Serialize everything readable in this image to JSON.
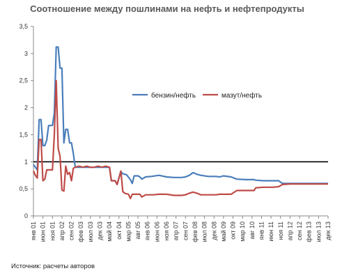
{
  "chart_data": {
    "type": "line",
    "title": "Соотношение между пошлинами на нефть и нефтепродукты",
    "ylim": [
      0,
      3.5
    ],
    "yticks": [
      "0",
      "0,5",
      "1",
      "1,5",
      "2",
      "2,5",
      "3",
      "3,5"
    ],
    "reference_line": 1,
    "x_labels": [
      "янв 01",
      "июн 01",
      "ноя 01",
      "апр 02",
      "сен 02",
      "фев 03",
      "июл 03",
      "дек 03",
      "май 04",
      "окт 04",
      "мар 05",
      "авг 05",
      "янв 06",
      "июн 06",
      "ноя 06",
      "апр 07",
      "сен 07",
      "фев 08",
      "июл 08",
      "дек 08",
      "май 09",
      "окт 09",
      "мар 10",
      "авг 10",
      "янв 11",
      "июн 11",
      "ноя 11",
      "апр 12",
      "сен 12",
      "фев 13",
      "июл 13",
      "дек 13"
    ],
    "legend_position": "center-right",
    "series": [
      {
        "name": "бензин/нефть",
        "color": "#4a7ebb",
        "points": [
          [
            0,
            0.95
          ],
          [
            1,
            0.9
          ],
          [
            2,
            0.85
          ],
          [
            3,
            1.78
          ],
          [
            4,
            1.78
          ],
          [
            5,
            1.3
          ],
          [
            6,
            1.3
          ],
          [
            7,
            1.4
          ],
          [
            8,
            1.67
          ],
          [
            9,
            1.67
          ],
          [
            10,
            1.67
          ],
          [
            11,
            1.9
          ],
          [
            12,
            3.12
          ],
          [
            13,
            3.12
          ],
          [
            14,
            2.73
          ],
          [
            15,
            2.73
          ],
          [
            16,
            1.35
          ],
          [
            17,
            1.6
          ],
          [
            18,
            1.6
          ],
          [
            19,
            1.35
          ],
          [
            20,
            1.35
          ],
          [
            21,
            1.15
          ],
          [
            22,
            0.9
          ],
          [
            24,
            0.9
          ],
          [
            26,
            0.9
          ],
          [
            28,
            0.9
          ],
          [
            30,
            0.9
          ],
          [
            32,
            0.9
          ],
          [
            34,
            0.9
          ],
          [
            36,
            0.9
          ],
          [
            38,
            0.9
          ],
          [
            40,
            0.9
          ],
          [
            41,
            0.65
          ],
          [
            43,
            0.65
          ],
          [
            44,
            0.58
          ],
          [
            46,
            0.82
          ],
          [
            47,
            0.78
          ],
          [
            49,
            0.76
          ],
          [
            51,
            0.67
          ],
          [
            52,
            0.6
          ],
          [
            53,
            0.74
          ],
          [
            55,
            0.74
          ],
          [
            56,
            0.72
          ],
          [
            57,
            0.68
          ],
          [
            59,
            0.72
          ],
          [
            62,
            0.73
          ],
          [
            66,
            0.75
          ],
          [
            70,
            0.72
          ],
          [
            74,
            0.71
          ],
          [
            78,
            0.71
          ],
          [
            80,
            0.72
          ],
          [
            82,
            0.75
          ],
          [
            84,
            0.8
          ],
          [
            86,
            0.77
          ],
          [
            88,
            0.75
          ],
          [
            92,
            0.73
          ],
          [
            96,
            0.73
          ],
          [
            98,
            0.72
          ],
          [
            100,
            0.74
          ],
          [
            104,
            0.72
          ],
          [
            107,
            0.68
          ],
          [
            112,
            0.67
          ],
          [
            116,
            0.67
          ],
          [
            117,
            0.66
          ],
          [
            121,
            0.65
          ],
          [
            126,
            0.65
          ],
          [
            129,
            0.65
          ],
          [
            131,
            0.6
          ],
          [
            135,
            0.6
          ],
          [
            140,
            0.6
          ],
          [
            155,
            0.6
          ]
        ]
      },
      {
        "name": "мазут/нефть",
        "color": "#be4b48",
        "points": [
          [
            0,
            0.83
          ],
          [
            1,
            0.75
          ],
          [
            2,
            0.7
          ],
          [
            3,
            1.41
          ],
          [
            4,
            1.41
          ],
          [
            5,
            0.65
          ],
          [
            6,
            0.68
          ],
          [
            7,
            0.85
          ],
          [
            8,
            0.85
          ],
          [
            10,
            0.85
          ],
          [
            11,
            1.5
          ],
          [
            12,
            2.5
          ],
          [
            13,
            1.25
          ],
          [
            14,
            1.1
          ],
          [
            15,
            0.48
          ],
          [
            16,
            0.46
          ],
          [
            17,
            0.92
          ],
          [
            18,
            0.77
          ],
          [
            19,
            0.8
          ],
          [
            20,
            0.65
          ],
          [
            21,
            0.88
          ],
          [
            22,
            0.9
          ],
          [
            24,
            0.92
          ],
          [
            26,
            0.9
          ],
          [
            28,
            0.92
          ],
          [
            30,
            0.9
          ],
          [
            32,
            0.9
          ],
          [
            34,
            0.92
          ],
          [
            36,
            0.9
          ],
          [
            38,
            0.92
          ],
          [
            40,
            0.9
          ],
          [
            41,
            0.65
          ],
          [
            43,
            0.65
          ],
          [
            44,
            0.58
          ],
          [
            46,
            0.83
          ],
          [
            47,
            0.45
          ],
          [
            48,
            0.42
          ],
          [
            50,
            0.4
          ],
          [
            51,
            0.32
          ],
          [
            52,
            0.4
          ],
          [
            56,
            0.4
          ],
          [
            57,
            0.35
          ],
          [
            59,
            0.39
          ],
          [
            63,
            0.39
          ],
          [
            66,
            0.4
          ],
          [
            70,
            0.4
          ],
          [
            74,
            0.38
          ],
          [
            78,
            0.38
          ],
          [
            80,
            0.39
          ],
          [
            82,
            0.42
          ],
          [
            84,
            0.44
          ],
          [
            86,
            0.42
          ],
          [
            88,
            0.39
          ],
          [
            92,
            0.39
          ],
          [
            96,
            0.39
          ],
          [
            98,
            0.4
          ],
          [
            104,
            0.4
          ],
          [
            107,
            0.47
          ],
          [
            112,
            0.47
          ],
          [
            116,
            0.47
          ],
          [
            117,
            0.52
          ],
          [
            121,
            0.53
          ],
          [
            126,
            0.53
          ],
          [
            129,
            0.54
          ],
          [
            131,
            0.58
          ],
          [
            135,
            0.59
          ],
          [
            140,
            0.59
          ],
          [
            155,
            0.59
          ]
        ]
      }
    ]
  },
  "source_text": "Источник: расчеты авторов"
}
